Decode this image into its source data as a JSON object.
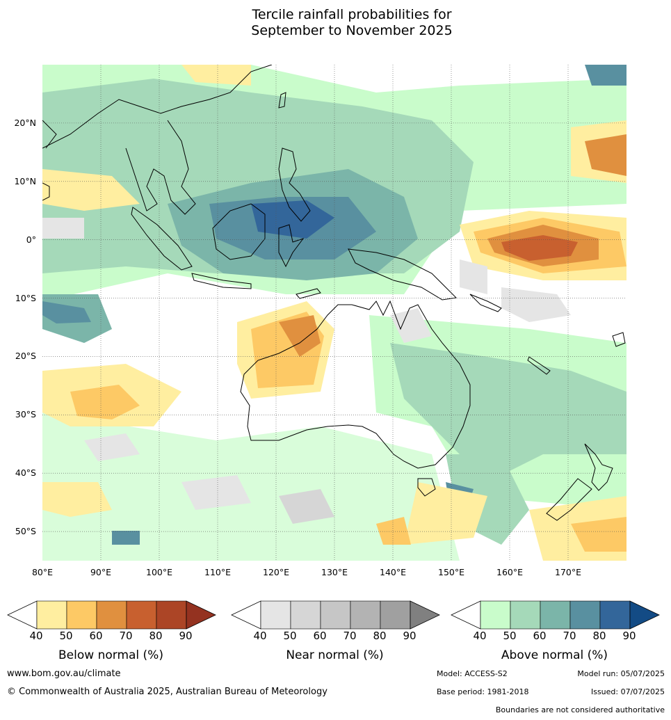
{
  "title_line1": "Tercile rainfall probabilities for",
  "title_line2": "September to November 2025",
  "map": {
    "lon_range": [
      80,
      180
    ],
    "lat_range": [
      -55,
      30
    ],
    "lat_ticks": [
      {
        "value": 20,
        "label": "20°N"
      },
      {
        "value": 10,
        "label": "10°N"
      },
      {
        "value": 0,
        "label": "0°"
      },
      {
        "value": -10,
        "label": "10°S"
      },
      {
        "value": -20,
        "label": "20°S"
      },
      {
        "value": -30,
        "label": "30°S"
      },
      {
        "value": -40,
        "label": "40°S"
      },
      {
        "value": -50,
        "label": "50°S"
      }
    ],
    "lon_ticks": [
      {
        "value": 80,
        "label": "80°E"
      },
      {
        "value": 90,
        "label": "90°E"
      },
      {
        "value": 100,
        "label": "100°E"
      },
      {
        "value": 110,
        "label": "110°E"
      },
      {
        "value": 120,
        "label": "120°E"
      },
      {
        "value": 130,
        "label": "130°E"
      },
      {
        "value": 140,
        "label": "140°E"
      },
      {
        "value": 150,
        "label": "150°E"
      },
      {
        "value": 160,
        "label": "160°E"
      },
      {
        "value": 170,
        "label": "170°E"
      }
    ]
  },
  "colorbars": [
    {
      "title": "Below normal (%)",
      "ticks": [
        "40",
        "50",
        "60",
        "70",
        "80",
        "90"
      ],
      "colors": [
        "#ffeea0",
        "#fdc965",
        "#e0903f",
        "#c8602f",
        "#ac4526"
      ],
      "arrow": "#943220"
    },
    {
      "title": "Near normal (%)",
      "ticks": [
        "40",
        "50",
        "60",
        "70",
        "80",
        "90"
      ],
      "colors": [
        "#e5e5e5",
        "#d6d6d6",
        "#c6c6c6",
        "#b3b3b3",
        "#a0a0a0"
      ],
      "arrow": "#808080"
    },
    {
      "title": "Above normal (%)",
      "ticks": [
        "40",
        "50",
        "60",
        "70",
        "80",
        "90"
      ],
      "colors": [
        "#c9fccb",
        "#a5d9b9",
        "#7bb5a9",
        "#5990a0",
        "#33669a"
      ],
      "arrow": "#134b85"
    }
  ],
  "footer": {
    "website": "www.bom.gov.au/climate",
    "copyright": "© Commonwealth of Australia 2025, Australian Bureau of Meteorology",
    "model": "Model: ACCESS-S2",
    "model_run": "Model run: 05/07/2025",
    "base_period": "Base period: 1981-2018",
    "issued": "Issued: 07/07/2025",
    "boundaries": "Boundaries are not considered authoritative"
  }
}
